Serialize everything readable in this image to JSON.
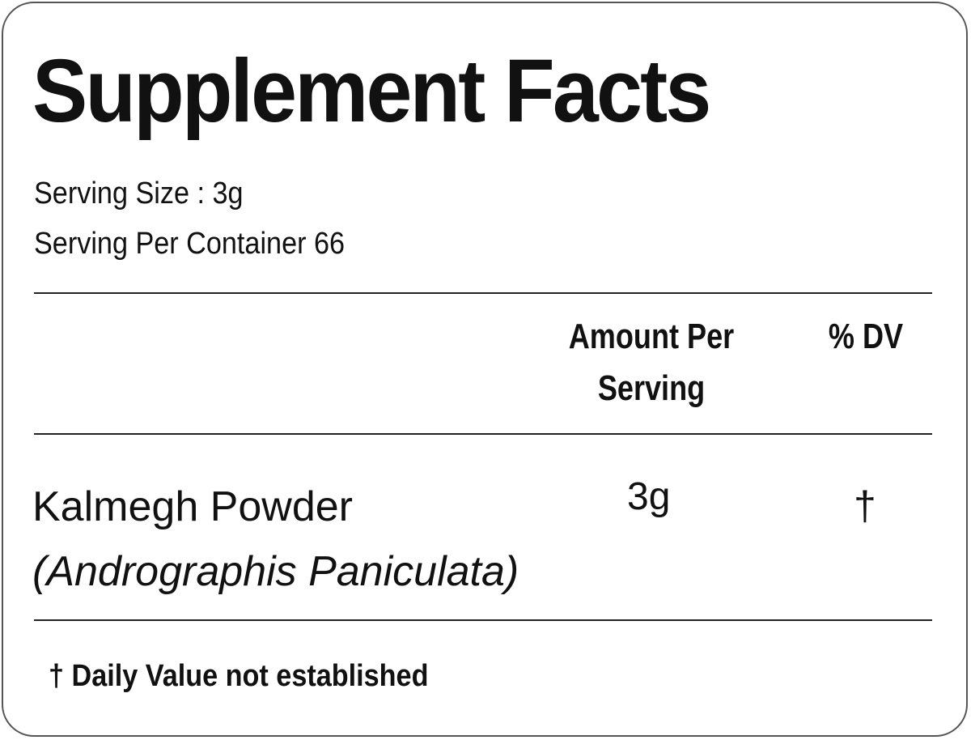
{
  "title": "Supplement Facts",
  "serving_size": "Serving Size : 3g",
  "servings_per_container": "Serving Per Container 66",
  "columns": {
    "amount": "Amount Per Serving",
    "dv": "% DV"
  },
  "rows": [
    {
      "name": "Kalmegh Powder",
      "latin": "(Andrographis Paniculata)",
      "amount": "3g",
      "dv": "†"
    }
  ],
  "footnote": "† Daily Value not established"
}
